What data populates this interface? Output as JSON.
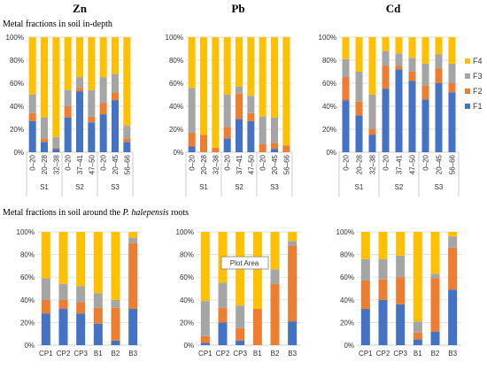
{
  "figure": {
    "top_section_title": "Metal fractions in soil in-depth",
    "bottom_section_prefix": "Metal fractions in soil around the ",
    "bottom_section_species": "P. halepensis",
    "bottom_section_suffix": " roots",
    "metals": [
      "Zn",
      "Pb",
      "Cd"
    ],
    "tooltip": "Plot Area"
  },
  "colors": {
    "F1": "#4472c4",
    "F2": "#ed7d31",
    "F3": "#a5a5a5",
    "F4": "#ffc000"
  },
  "chart_data": [
    {
      "type": "bar",
      "stacked": true,
      "metal": "Zn",
      "section": "in-depth",
      "categories": [
        "0–20",
        "20–28",
        "32–38",
        "0–20",
        "37–41",
        "47–50",
        "0–20",
        "20–45",
        "56–66"
      ],
      "groups": [
        {
          "label": "S1",
          "count": 3
        },
        {
          "label": "S2",
          "count": 3
        },
        {
          "label": "S3",
          "count": 3
        }
      ],
      "ylim": [
        0,
        100
      ],
      "yticks": [
        "0%",
        "20%",
        "40%",
        "60%",
        "80%",
        "100%"
      ],
      "series": [
        {
          "name": "F1",
          "values": [
            27,
            9,
            3,
            30,
            53,
            26,
            33,
            45,
            9
          ]
        },
        {
          "name": "F2",
          "values": [
            7,
            3,
            1,
            10,
            3,
            5,
            10,
            7,
            3
          ]
        },
        {
          "name": "F3",
          "values": [
            16,
            18,
            9,
            14,
            9,
            23,
            22,
            16,
            11
          ]
        },
        {
          "name": "F4",
          "values": [
            50,
            70,
            87,
            46,
            35,
            46,
            35,
            32,
            77
          ]
        }
      ]
    },
    {
      "type": "bar",
      "stacked": true,
      "metal": "Pb",
      "section": "in-depth",
      "categories": [
        "0–20",
        "20–28",
        "32–38",
        "0–20",
        "37–41",
        "47–50",
        "0–20",
        "20–45",
        "56–66"
      ],
      "groups": [
        {
          "label": "S1",
          "count": 3
        },
        {
          "label": "S2",
          "count": 3
        },
        {
          "label": "S3",
          "count": 3
        }
      ],
      "ylim": [
        0,
        100
      ],
      "yticks": [
        "0%",
        "20%",
        "40%",
        "60%",
        "80%",
        "100%"
      ],
      "series": [
        {
          "name": "F1",
          "values": [
            5,
            0,
            0,
            12,
            29,
            27,
            0,
            3,
            0
          ]
        },
        {
          "name": "F2",
          "values": [
            12,
            15,
            4,
            10,
            22,
            7,
            7,
            5,
            6
          ]
        },
        {
          "name": "F3",
          "values": [
            39,
            0,
            0,
            28,
            6,
            15,
            24,
            22,
            0
          ]
        },
        {
          "name": "F4",
          "values": [
            44,
            85,
            96,
            50,
            43,
            51,
            69,
            70,
            94
          ]
        }
      ]
    },
    {
      "type": "bar",
      "stacked": true,
      "metal": "Cd",
      "section": "in-depth",
      "categories": [
        "0–20",
        "20–28",
        "32–38",
        "0–20",
        "37–41",
        "47–50",
        "0–20",
        "20–45",
        "56–66"
      ],
      "groups": [
        {
          "label": "S1",
          "count": 3
        },
        {
          "label": "S2",
          "count": 3
        },
        {
          "label": "S3",
          "count": 3
        }
      ],
      "ylim": [
        0,
        100
      ],
      "yticks": [
        "0%",
        "20%",
        "40%",
        "60%",
        "80%",
        "100%"
      ],
      "legend": [
        "F4",
        "F3",
        "F2",
        "F1"
      ],
      "series": [
        {
          "name": "F1",
          "values": [
            45,
            32,
            15,
            55,
            72,
            62,
            46,
            60,
            52
          ]
        },
        {
          "name": "F2",
          "values": [
            20,
            12,
            5,
            20,
            3,
            8,
            12,
            13,
            8
          ]
        },
        {
          "name": "F3",
          "values": [
            16,
            26,
            30,
            13,
            11,
            12,
            19,
            12,
            17
          ]
        },
        {
          "name": "F4",
          "values": [
            19,
            30,
            50,
            12,
            14,
            18,
            23,
            15,
            23
          ]
        }
      ]
    },
    {
      "type": "bar",
      "stacked": true,
      "metal": "Zn",
      "section": "roots",
      "categories": [
        "CP1",
        "CP2",
        "CP3",
        "B1",
        "B2",
        "B3"
      ],
      "ylim": [
        0,
        100
      ],
      "yticks": [
        "0%",
        "20%",
        "40%",
        "60%",
        "80%",
        "100%"
      ],
      "series": [
        {
          "name": "F1",
          "values": [
            28,
            32,
            28,
            19,
            4,
            32
          ]
        },
        {
          "name": "F2",
          "values": [
            12,
            8,
            10,
            14,
            29,
            58
          ]
        },
        {
          "name": "F3",
          "values": [
            19,
            14,
            14,
            13,
            7,
            5
          ]
        },
        {
          "name": "F4",
          "values": [
            41,
            46,
            48,
            54,
            60,
            5
          ]
        }
      ]
    },
    {
      "type": "bar",
      "stacked": true,
      "metal": "Pb",
      "section": "roots",
      "categories": [
        "CP1",
        "CP2",
        "CP3",
        "B1",
        "B2",
        "B3"
      ],
      "ylim": [
        0,
        100
      ],
      "yticks": [
        "0%",
        "20%",
        "40%",
        "60%",
        "80%",
        "100%"
      ],
      "series": [
        {
          "name": "F1",
          "values": [
            2,
            20,
            4,
            0,
            0,
            21
          ]
        },
        {
          "name": "F2",
          "values": [
            6,
            13,
            11,
            32,
            54,
            67
          ]
        },
        {
          "name": "F3",
          "values": [
            31,
            22,
            20,
            0,
            13,
            4
          ]
        },
        {
          "name": "F4",
          "values": [
            61,
            45,
            65,
            68,
            33,
            8
          ]
        }
      ]
    },
    {
      "type": "bar",
      "stacked": true,
      "metal": "Cd",
      "section": "roots",
      "categories": [
        "CP1",
        "CP2",
        "CP3",
        "B1",
        "B2",
        "B3"
      ],
      "ylim": [
        0,
        100
      ],
      "yticks": [
        "0%",
        "20%",
        "40%",
        "60%",
        "80%",
        "100%"
      ],
      "series": [
        {
          "name": "F1",
          "values": [
            32,
            40,
            36,
            5,
            12,
            49
          ]
        },
        {
          "name": "F2",
          "values": [
            25,
            18,
            24,
            6,
            47,
            37
          ]
        },
        {
          "name": "F3",
          "values": [
            19,
            18,
            19,
            10,
            4,
            10
          ]
        },
        {
          "name": "F4",
          "values": [
            24,
            24,
            21,
            79,
            37,
            4
          ]
        }
      ]
    }
  ]
}
